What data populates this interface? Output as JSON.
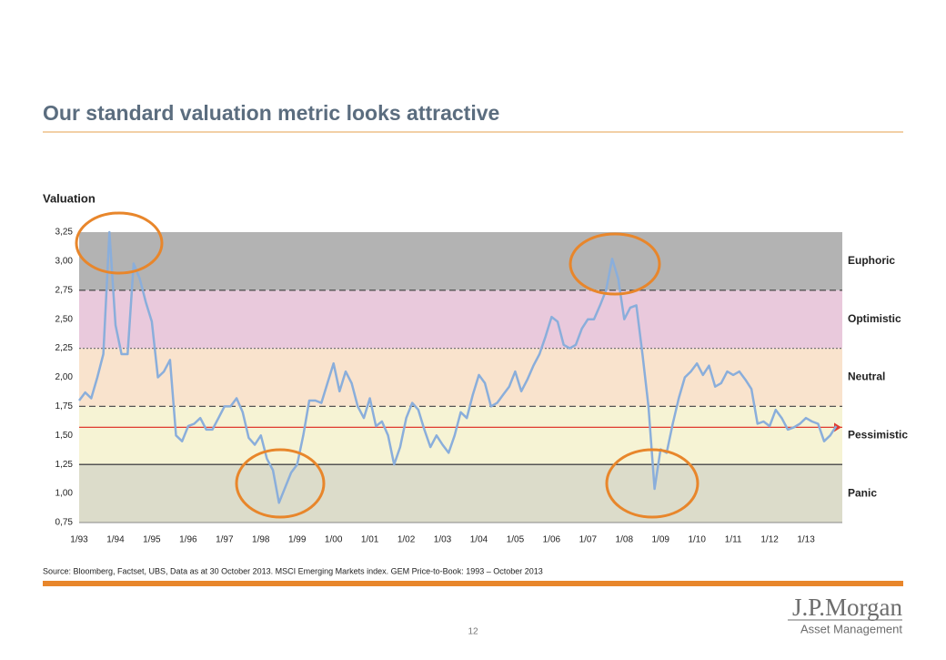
{
  "title": "Our standard valuation metric looks attractive",
  "source": "Source: Bloomberg, Factset, UBS, Data as at 30 October 2013. MSCI Emerging Markets index.  GEM Price-to-Book: 1993 – October 2013",
  "page_number": "12",
  "logo": {
    "name": "J.P.Morgan",
    "division": "Asset Management"
  },
  "chart_data": {
    "type": "line",
    "y_label": "Valuation",
    "categories": [
      "1/93",
      null,
      null,
      null,
      null,
      null,
      "1/94",
      null,
      null,
      null,
      null,
      null,
      "1/95",
      null,
      null,
      null,
      null,
      null,
      "1/96",
      null,
      null,
      null,
      null,
      null,
      "1/97",
      null,
      null,
      null,
      null,
      null,
      "1/98",
      null,
      null,
      null,
      null,
      null,
      "1/99",
      null,
      null,
      null,
      null,
      null,
      "1/00",
      null,
      null,
      null,
      null,
      null,
      "1/01",
      null,
      null,
      null,
      null,
      null,
      "1/02",
      null,
      null,
      null,
      null,
      null,
      "1/03",
      null,
      null,
      null,
      null,
      null,
      "1/04",
      null,
      null,
      null,
      null,
      null,
      "1/05",
      null,
      null,
      null,
      null,
      null,
      "1/06",
      null,
      null,
      null,
      null,
      null,
      "1/07",
      null,
      null,
      null,
      null,
      null,
      "1/08",
      null,
      null,
      null,
      null,
      null,
      "1/09",
      null,
      null,
      null,
      null,
      null,
      "1/10",
      null,
      null,
      null,
      null,
      null,
      "1/11",
      null,
      null,
      null,
      null,
      null,
      "1/12",
      null,
      null,
      null,
      null,
      null,
      "1/13",
      null,
      null,
      null,
      null,
      null
    ],
    "series": [
      {
        "name": "GEM Price-to-Book",
        "color": "#8aaedb",
        "values": [
          1.8,
          1.87,
          1.82,
          2.0,
          2.2,
          3.25,
          2.45,
          2.2,
          2.2,
          2.98,
          2.85,
          2.65,
          2.48,
          2.0,
          2.05,
          2.15,
          1.5,
          1.45,
          1.58,
          1.6,
          1.65,
          1.55,
          1.55,
          1.65,
          1.75,
          1.75,
          1.82,
          1.7,
          1.48,
          1.42,
          1.5,
          1.3,
          1.2,
          0.92,
          1.05,
          1.18,
          1.25,
          1.5,
          1.8,
          1.8,
          1.78,
          1.95,
          2.12,
          1.88,
          2.05,
          1.95,
          1.75,
          1.65,
          1.82,
          1.58,
          1.62,
          1.5,
          1.25,
          1.4,
          1.65,
          1.78,
          1.72,
          1.55,
          1.4,
          1.5,
          1.42,
          1.35,
          1.5,
          1.7,
          1.65,
          1.85,
          2.02,
          1.95,
          1.75,
          1.78,
          1.85,
          1.92,
          2.05,
          1.88,
          1.98,
          2.1,
          2.2,
          2.35,
          2.52,
          2.48,
          2.28,
          2.25,
          2.28,
          2.42,
          2.5,
          2.5,
          2.62,
          2.75,
          3.02,
          2.85,
          2.5,
          2.6,
          2.62,
          2.2,
          1.75,
          1.04,
          1.38,
          1.35,
          1.6,
          1.82,
          2.0,
          2.05,
          2.12,
          2.02,
          2.1,
          1.92,
          1.95,
          2.05,
          2.02,
          2.05,
          1.98,
          1.9,
          1.6,
          1.62,
          1.58,
          1.72,
          1.65,
          1.55,
          1.57,
          1.6,
          1.65,
          1.62,
          1.6,
          1.45,
          1.5,
          1.58
        ]
      }
    ],
    "average": {
      "value": 1.57,
      "color": "#e03a2f"
    },
    "bands": [
      {
        "label": "Panic",
        "from": 0.75,
        "to": 1.25,
        "color": "#dcdcca",
        "border": "solid"
      },
      {
        "label": "Pessimistic",
        "from": 1.25,
        "to": 1.75,
        "color": "#f6f3d4",
        "border": "dashed"
      },
      {
        "label": "Neutral",
        "from": 1.75,
        "to": 2.25,
        "color": "#f9e3cd",
        "border": "dotted"
      },
      {
        "label": "Optimistic",
        "from": 2.25,
        "to": 2.75,
        "color": "#e9c9dc",
        "border": "dashed"
      },
      {
        "label": "Euphoric",
        "from": 2.75,
        "to": 3.25,
        "color": "#b3b3b3",
        "border": "none"
      }
    ],
    "ylim": [
      0.75,
      3.25
    ],
    "yticks": [
      {
        "value": 0.75,
        "label": "0,75"
      },
      {
        "value": 1.0,
        "label": "1,00"
      },
      {
        "value": 1.25,
        "label": "1,25"
      },
      {
        "value": 1.5,
        "label": "1,50"
      },
      {
        "value": 1.75,
        "label": "1,75"
      },
      {
        "value": 2.0,
        "label": "2,00"
      },
      {
        "value": 2.25,
        "label": "2,25"
      },
      {
        "value": 2.5,
        "label": "2,50"
      },
      {
        "value": 2.75,
        "label": "2,75"
      },
      {
        "value": 3.0,
        "label": "3,00"
      },
      {
        "value": 3.25,
        "label": "3,25"
      }
    ]
  }
}
